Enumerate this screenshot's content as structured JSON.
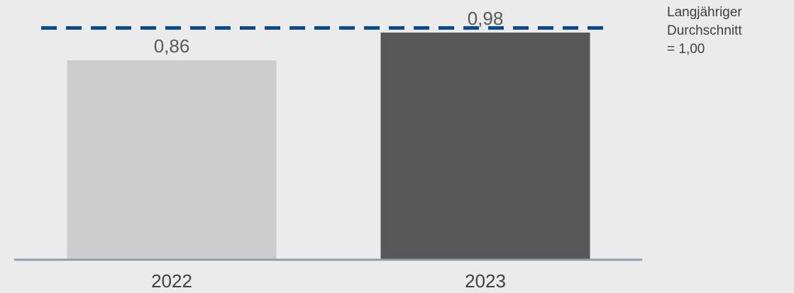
{
  "chart_data": {
    "type": "bar",
    "title": "",
    "xlabel": "",
    "ylabel": "",
    "categories": [
      "2022",
      "2023"
    ],
    "values": [
      0.86,
      0.98
    ],
    "value_labels": [
      "0,86",
      "0,98"
    ],
    "bar_colors": [
      "#cccccc",
      "#575757"
    ],
    "ylim": [
      0,
      1.2
    ],
    "grid": false,
    "reference_line": {
      "value": 1.0,
      "label_lines": [
        "Langjähriger",
        "Durchschnitt",
        "= 1,00"
      ],
      "color": "#0b4a8b",
      "style": "dashed"
    },
    "axis_color": "#8c9db0",
    "background": "#ebebeb"
  }
}
